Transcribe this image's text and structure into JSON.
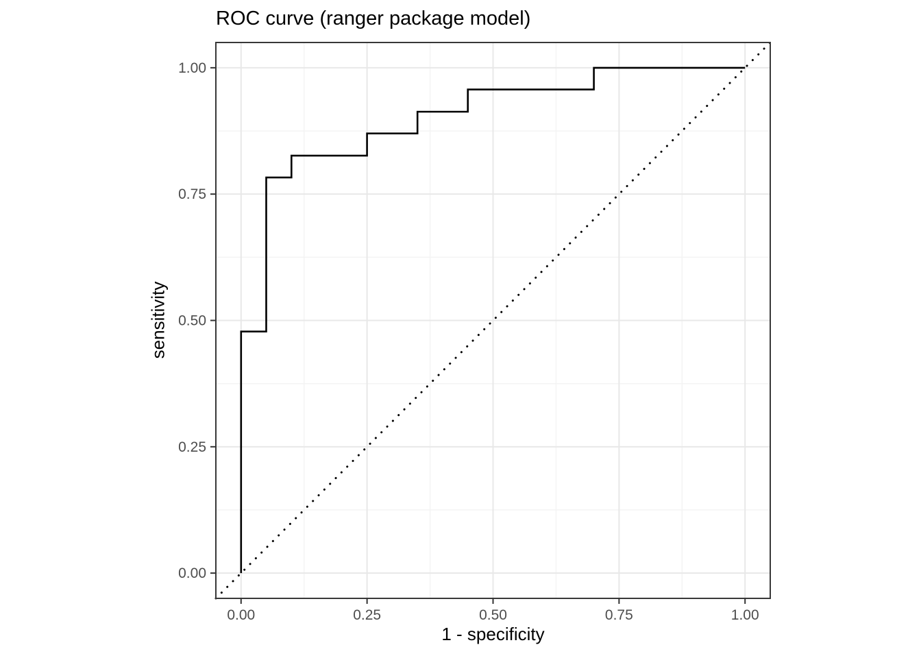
{
  "chart_data": {
    "type": "line",
    "title": "ROC curve (ranger package model)",
    "xlabel": "1 - specificity",
    "ylabel": "sensitivity",
    "xlim": [
      -0.05,
      1.05
    ],
    "ylim": [
      -0.05,
      1.05
    ],
    "x_ticks": [
      0.0,
      0.25,
      0.5,
      0.75,
      1.0
    ],
    "y_ticks": [
      0.0,
      0.25,
      0.5,
      0.75,
      1.0
    ],
    "x_tick_labels": [
      "0.00",
      "0.25",
      "0.50",
      "0.75",
      "1.00"
    ],
    "y_tick_labels": [
      "0.00",
      "0.25",
      "0.50",
      "0.75",
      "1.00"
    ],
    "x_minor_ticks": [
      0.125,
      0.375,
      0.625,
      0.875
    ],
    "y_minor_ticks": [
      0.125,
      0.375,
      0.625,
      0.875
    ],
    "grid": true,
    "legend": "none",
    "series": [
      {
        "name": "roc-curve",
        "style": "step-solid",
        "points": [
          [
            0.0,
            0.0
          ],
          [
            0.0,
            0.478
          ],
          [
            0.05,
            0.478
          ],
          [
            0.05,
            0.783
          ],
          [
            0.1,
            0.783
          ],
          [
            0.1,
            0.826
          ],
          [
            0.25,
            0.826
          ],
          [
            0.25,
            0.87
          ],
          [
            0.35,
            0.87
          ],
          [
            0.35,
            0.913
          ],
          [
            0.45,
            0.913
          ],
          [
            0.45,
            0.957
          ],
          [
            0.7,
            0.957
          ],
          [
            0.7,
            1.0
          ],
          [
            1.0,
            1.0
          ]
        ]
      },
      {
        "name": "chance-diagonal",
        "style": "dotted",
        "points": [
          [
            -0.05,
            -0.05
          ],
          [
            1.05,
            1.05
          ]
        ]
      }
    ],
    "colors": {
      "line": "#000000",
      "diagonal": "#000000",
      "grid_major": "#e8e8e8",
      "grid_minor": "#f3f3f3",
      "panel_border": "#383838",
      "tick": "#333333",
      "tick_label": "#4d4d4d",
      "title": "#000000",
      "background": "#ffffff"
    }
  }
}
